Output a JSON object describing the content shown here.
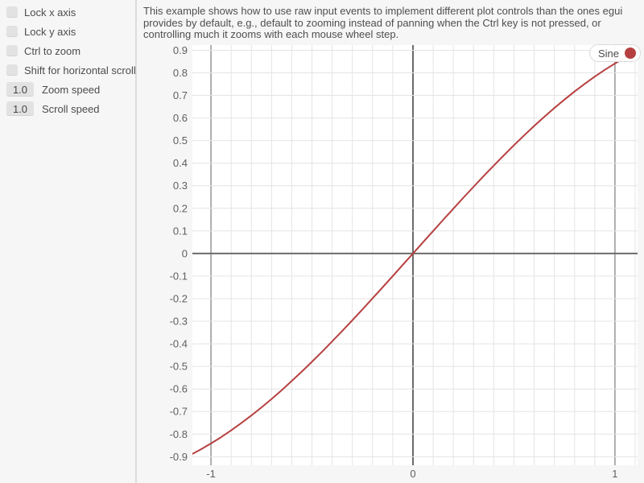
{
  "sidebar": {
    "checkboxes": [
      {
        "label": "Lock x axis",
        "checked": false
      },
      {
        "label": "Lock y axis",
        "checked": false
      },
      {
        "label": "Ctrl to zoom",
        "checked": false
      },
      {
        "label": "Shift for horizontal scroll",
        "checked": false
      }
    ],
    "drag_values": [
      {
        "value": "1.0",
        "label": "Zoom speed"
      },
      {
        "value": "1.0",
        "label": "Scroll speed"
      }
    ]
  },
  "description": {
    "lines": [
      "This example shows how to use raw input events to implement different plot controls than the ones egui",
      "provides by default, e.g., default to zooming instead of panning when the Ctrl key is not pressed, or",
      "controlling much it zooms with each mouse wheel step."
    ]
  },
  "legend": {
    "label": "Sine",
    "color": "#b64040",
    "position": "right-top"
  },
  "colors": {
    "background": "#f6f6f6",
    "plot_background": "#ffffff",
    "grid_minor": "#e4e4e4",
    "grid_unit": "#9c9c9c",
    "grid_zero": "#6b6b6b",
    "tick_text": "#5f5f5f",
    "curve": "#b64040",
    "widget_fill": "#e2e2e2",
    "separator": "#dcdcdc"
  },
  "chart_data": {
    "type": "line",
    "title": "",
    "xlabel": "",
    "ylabel": "",
    "grid": true,
    "legend_position": "right-top",
    "xlim": [
      -1.092,
      1.112
    ],
    "ylim": [
      -0.938,
      0.923
    ],
    "x_ticks": {
      "values": [
        -1,
        0,
        1
      ],
      "labels": [
        "-1",
        "0",
        "1"
      ]
    },
    "y_ticks": {
      "values": [
        0.9,
        0.8,
        0.7,
        0.6,
        0.5,
        0.4,
        0.3,
        0.2,
        0.1,
        0,
        -0.1,
        -0.2,
        -0.3,
        -0.4,
        -0.5,
        -0.6,
        -0.7,
        -0.8,
        -0.9
      ],
      "labels": [
        "0.9",
        "0.8",
        "0.7",
        "0.6",
        "0.5",
        "0.4",
        "0.3",
        "0.2",
        "0.1",
        "0",
        "-0.1",
        "-0.2",
        "-0.3",
        "-0.4",
        "-0.5",
        "-0.6",
        "-0.7",
        "-0.8",
        "-0.9"
      ]
    },
    "minor_grid_step": 0.1,
    "series": [
      {
        "name": "Sine",
        "function": "sin(x)",
        "color": "#b64040",
        "points": [
          [
            -1.1,
            -0.8912
          ],
          [
            -1.05,
            -0.8674
          ],
          [
            -1.0,
            -0.8415
          ],
          [
            -0.95,
            -0.8134
          ],
          [
            -0.9,
            -0.7833
          ],
          [
            -0.85,
            -0.7513
          ],
          [
            -0.8,
            -0.7174
          ],
          [
            -0.75,
            -0.6816
          ],
          [
            -0.7,
            -0.6442
          ],
          [
            -0.65,
            -0.6052
          ],
          [
            -0.6,
            -0.5646
          ],
          [
            -0.55,
            -0.5227
          ],
          [
            -0.5,
            -0.4794
          ],
          [
            -0.45,
            -0.435
          ],
          [
            -0.4,
            -0.3894
          ],
          [
            -0.35,
            -0.3429
          ],
          [
            -0.3,
            -0.2955
          ],
          [
            -0.25,
            -0.2474
          ],
          [
            -0.2,
            -0.1987
          ],
          [
            -0.15,
            -0.1494
          ],
          [
            -0.1,
            -0.0998
          ],
          [
            -0.05,
            -0.05
          ],
          [
            0.0,
            0.0
          ],
          [
            0.05,
            0.05
          ],
          [
            0.1,
            0.0998
          ],
          [
            0.15,
            0.1494
          ],
          [
            0.2,
            0.1987
          ],
          [
            0.25,
            0.2474
          ],
          [
            0.3,
            0.2955
          ],
          [
            0.35,
            0.3429
          ],
          [
            0.4,
            0.3894
          ],
          [
            0.45,
            0.435
          ],
          [
            0.5,
            0.4794
          ],
          [
            0.55,
            0.5227
          ],
          [
            0.6,
            0.5646
          ],
          [
            0.65,
            0.6052
          ],
          [
            0.7,
            0.6442
          ],
          [
            0.75,
            0.6816
          ],
          [
            0.8,
            0.7174
          ],
          [
            0.85,
            0.7513
          ],
          [
            0.9,
            0.7833
          ],
          [
            0.95,
            0.8134
          ],
          [
            1.0,
            0.8415
          ],
          [
            1.05,
            0.8674
          ],
          [
            1.1,
            0.8912
          ],
          [
            1.15,
            0.9128
          ]
        ]
      }
    ]
  }
}
